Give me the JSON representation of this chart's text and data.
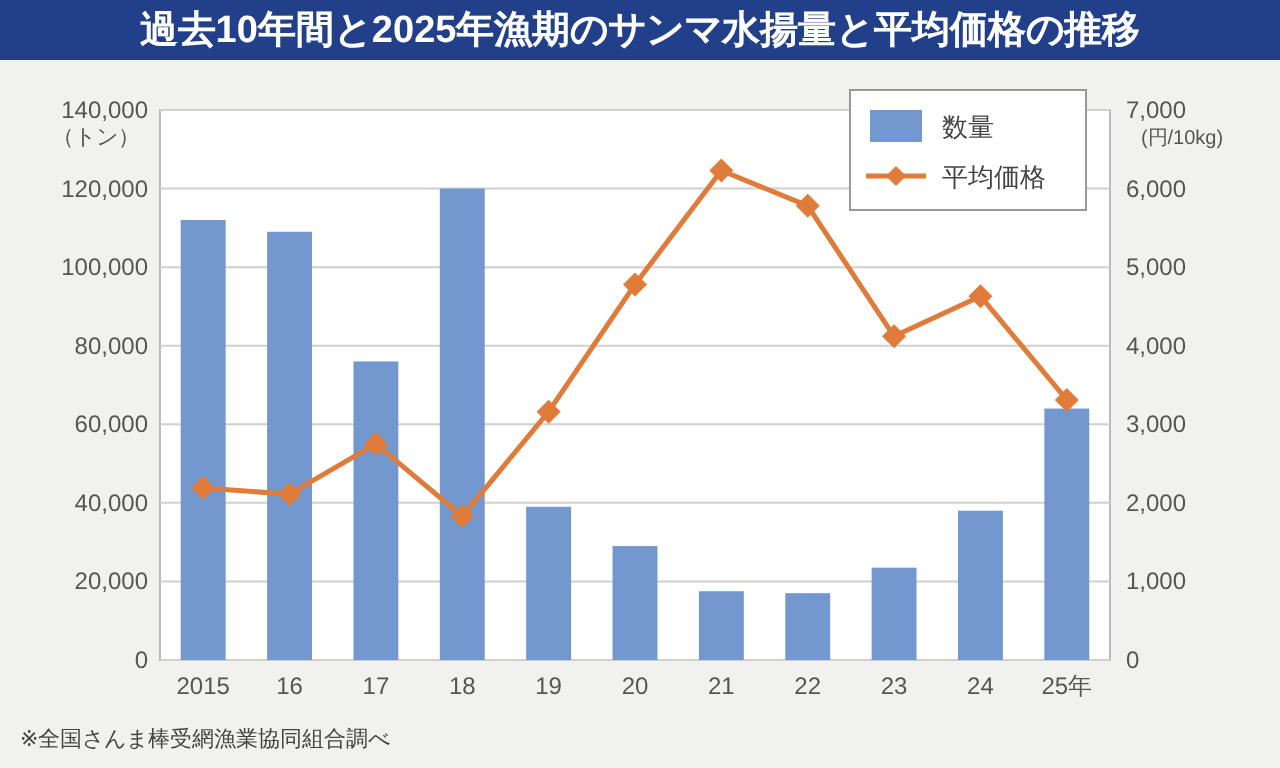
{
  "chart_data": {
    "type": "bar",
    "title": "過去10年間と2025年漁期のサンマ水揚量と平均価格の推移",
    "ylabel": "（トン）",
    "y2label": "(円/10kg)",
    "categories": [
      "2015",
      "16",
      "17",
      "18",
      "19",
      "20",
      "21",
      "22",
      "23",
      "24",
      "25年"
    ],
    "series": [
      {
        "name": "数量",
        "color": "#7397cf",
        "values": [
          112000,
          109000,
          76000,
          120000,
          39000,
          29000,
          17500,
          17000,
          23500,
          38000,
          64000
        ]
      },
      {
        "name": "平均価格",
        "type": "line",
        "axis": "y2",
        "color": "#e07b39",
        "marker": "diamond",
        "values": [
          2190,
          2110,
          2750,
          1830,
          3160,
          4780,
          6230,
          5780,
          4120,
          4630,
          3310
        ]
      }
    ],
    "ylim": [
      0,
      140000
    ],
    "yticks": [
      {
        "value": 0,
        "label": "0"
      },
      {
        "value": 20000,
        "label": "20,000"
      },
      {
        "value": 40000,
        "label": "40,000"
      },
      {
        "value": 60000,
        "label": "60,000"
      },
      {
        "value": 80000,
        "label": "80,000"
      },
      {
        "value": 100000,
        "label": "100,000"
      },
      {
        "value": 120000,
        "label": "120,000"
      },
      {
        "value": 140000,
        "label": "140,000"
      }
    ],
    "y2lim": [
      0,
      7000
    ],
    "y2ticks": [
      {
        "value": 0,
        "label": "0"
      },
      {
        "value": 1000,
        "label": "1,000"
      },
      {
        "value": 2000,
        "label": "2,000"
      },
      {
        "value": 3000,
        "label": "3,000"
      },
      {
        "value": 4000,
        "label": "4,000"
      },
      {
        "value": 5000,
        "label": "5,000"
      },
      {
        "value": 6000,
        "label": "6,000"
      },
      {
        "value": 7000,
        "label": "7,000"
      }
    ],
    "grid": "y",
    "legend": "top right",
    "annotations": [
      "※全国さんま棒受網漁業協同組合調べ"
    ]
  }
}
